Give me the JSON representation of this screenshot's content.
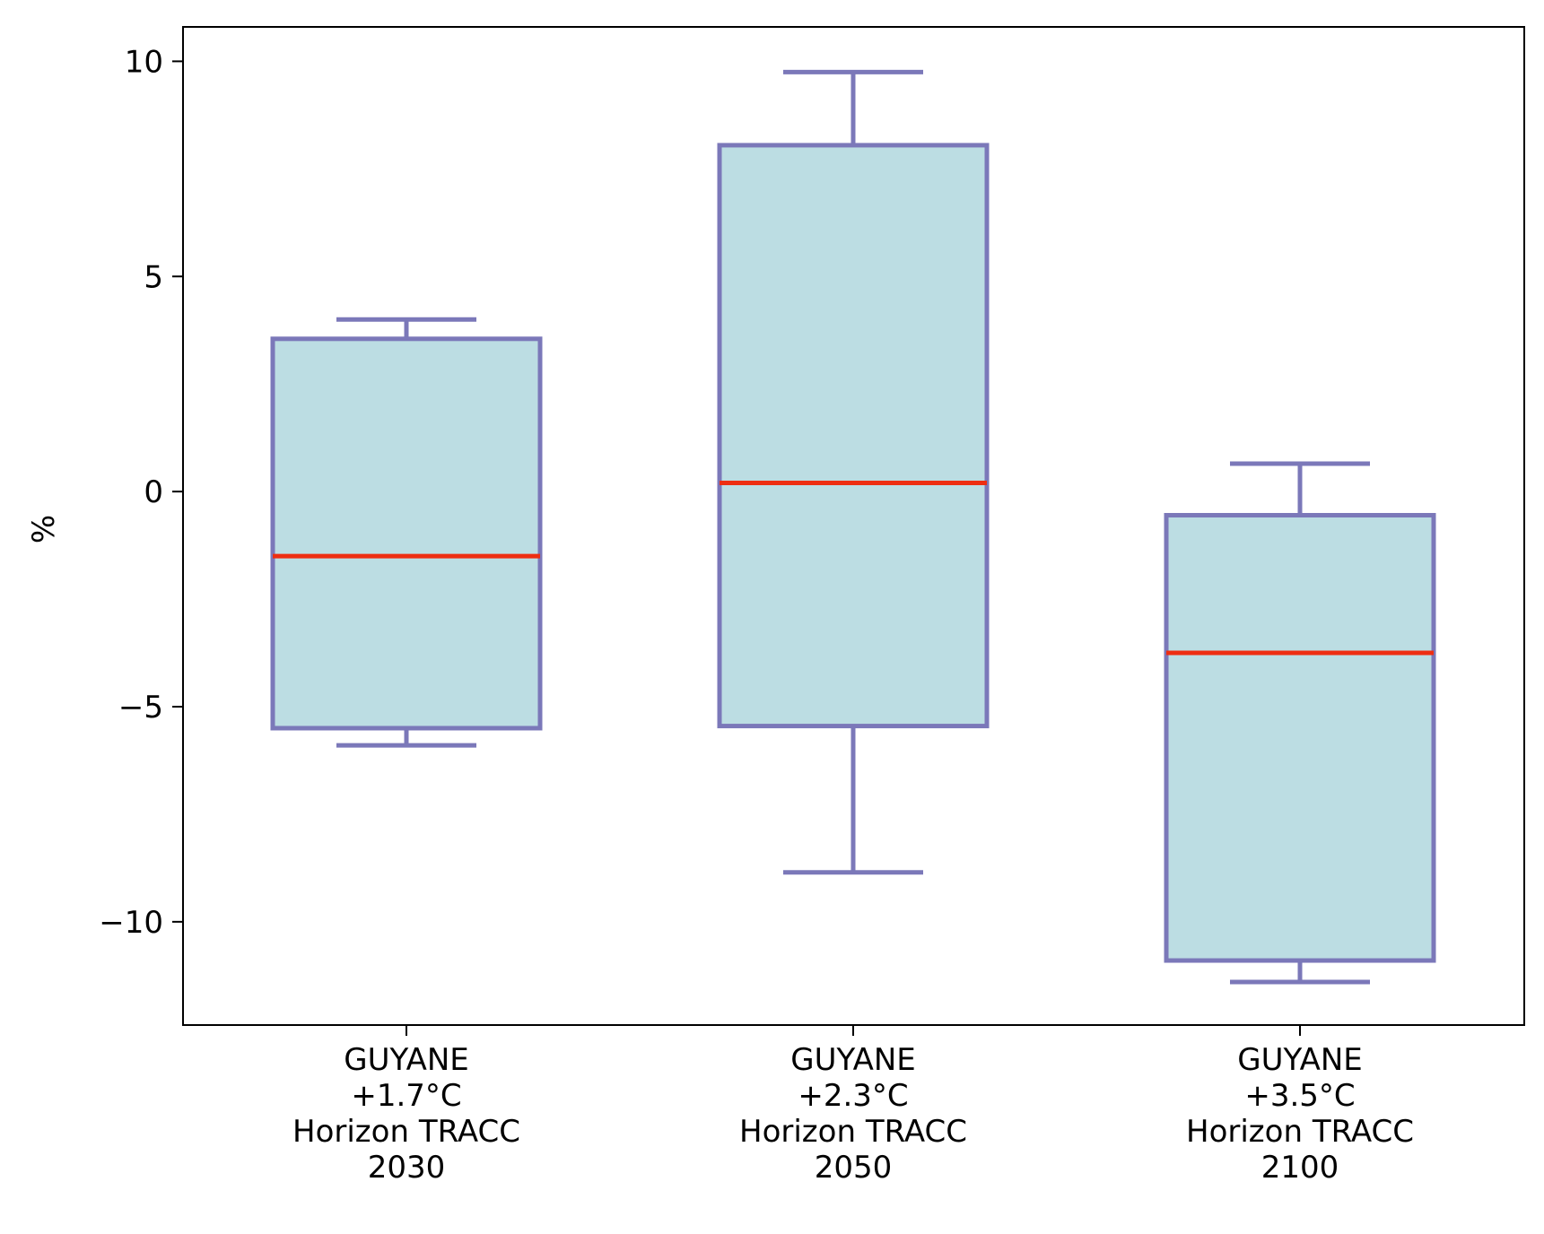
{
  "chart_data": {
    "type": "box",
    "title": "",
    "xlabel": "",
    "ylabel": "%",
    "ylim": [
      -12.4,
      10.8
    ],
    "yticks": [
      10,
      5,
      0,
      -5,
      -10
    ],
    "ytick_labels": [
      "10",
      "5",
      "0",
      "−5",
      "−10"
    ],
    "grid": false,
    "colors": {
      "box_fill": "#bcdde3",
      "box_edge": "#7b78b9",
      "median": "#ee2e12",
      "axes": "#000000"
    },
    "boxes": [
      {
        "label_lines": [
          "GUYANE",
          "+1.7°C",
          "Horizon TRACC",
          "2030"
        ],
        "whisker_low": -5.9,
        "q1": -5.5,
        "median": -1.5,
        "q3": 3.55,
        "whisker_high": 4.0
      },
      {
        "label_lines": [
          "GUYANE",
          "+2.3°C",
          "Horizon TRACC",
          "2050"
        ],
        "whisker_low": -8.85,
        "q1": -5.45,
        "median": 0.2,
        "q3": 8.05,
        "whisker_high": 9.75
      },
      {
        "label_lines": [
          "GUYANE",
          "+3.5°C",
          "Horizon TRACC",
          "2100"
        ],
        "whisker_low": -11.4,
        "q1": -10.9,
        "median": -3.75,
        "q3": -0.55,
        "whisker_high": 0.65
      }
    ]
  }
}
